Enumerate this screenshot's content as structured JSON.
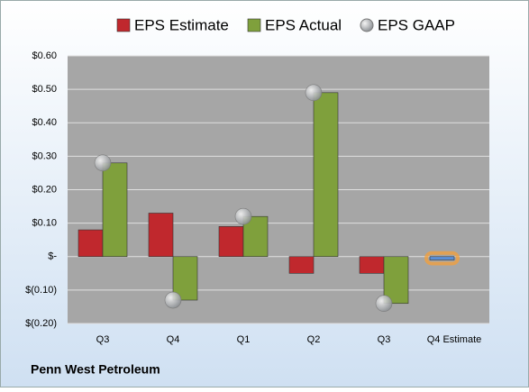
{
  "chart_data": {
    "type": "bar",
    "footer": "Penn West Petroleum",
    "categories": [
      "Q3",
      "Q4",
      "Q1",
      "Q2",
      "Q3",
      "Q4 Estimate"
    ],
    "series": [
      {
        "name": "EPS Estimate",
        "color": "#c0282d",
        "colors": [
          "#c0282d",
          "#c0282d",
          "#c0282d",
          "#c0282d",
          "#c0282d",
          "#5b8fd6"
        ],
        "values": [
          0.08,
          0.13,
          0.09,
          -0.05,
          -0.05,
          -0.01
        ]
      },
      {
        "name": "EPS Actual",
        "color": "#7fa03c",
        "values": [
          0.28,
          -0.13,
          0.12,
          0.49,
          -0.14,
          null
        ]
      },
      {
        "name": "EPS GAAP",
        "color": "#b0b4b8",
        "type": "scatter",
        "values": [
          0.28,
          -0.13,
          0.12,
          0.49,
          -0.14,
          null
        ]
      }
    ],
    "ylim": [
      -0.2,
      0.6
    ],
    "yticks": [
      {
        "value": 0.6,
        "label": "$0.60"
      },
      {
        "value": 0.5,
        "label": "$0.50"
      },
      {
        "value": 0.4,
        "label": "$0.40"
      },
      {
        "value": 0.3,
        "label": "$0.30"
      },
      {
        "value": 0.2,
        "label": "$0.20"
      },
      {
        "value": 0.1,
        "label": "$0.10"
      },
      {
        "value": 0,
        "label": "$-"
      },
      {
        "value": -0.1,
        "label": "$(0.10)"
      },
      {
        "value": -0.2,
        "label": "$(0.20)"
      }
    ],
    "grid": true
  }
}
